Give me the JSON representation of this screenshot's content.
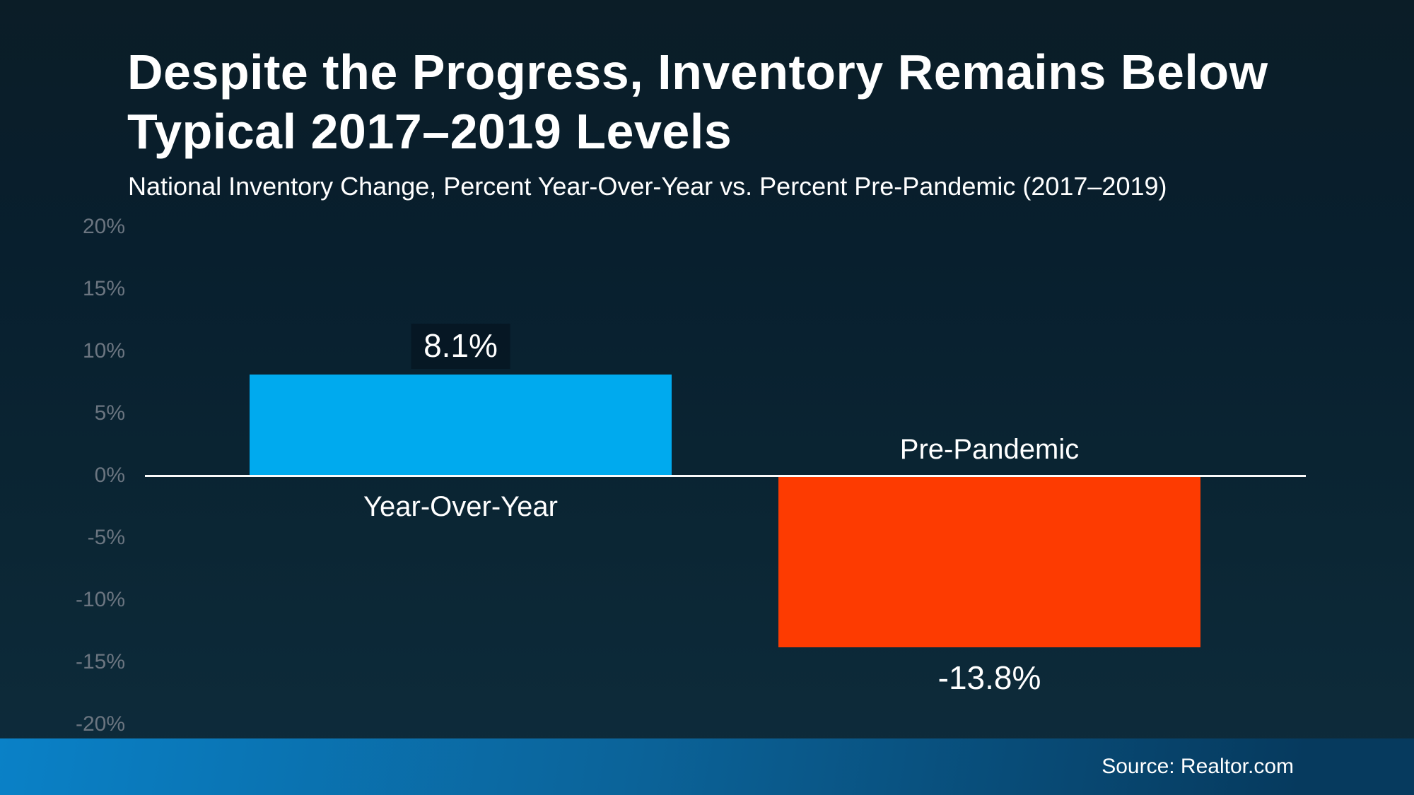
{
  "slide": {
    "title_lines": [
      "Despite the Progress, Inventory Remains Below",
      "Typical 2017–2019 Levels"
    ],
    "subtitle": "National Inventory Change, Percent Year-Over-Year vs. Percent Pre-Pandemic (2017–2019)",
    "footer": {
      "source": "Source: Realtor.com"
    }
  },
  "colors": {
    "background_top": "#0b1d27",
    "background_bottom": "#0e2c3c",
    "positive_bar": "#00aaee",
    "negative_bar": "#fd3b01",
    "axis_label": "#6b7580",
    "baseline": "#fafafa",
    "footer_left": "#0a81c7",
    "footer_right": "#063a5e",
    "text": "#ffffff"
  },
  "chart_data": {
    "type": "bar",
    "title": "Despite the Progress, Inventory Remains Below Typical 2017–2019 Levels",
    "subtitle": "National Inventory Change, Percent Year-Over-Year vs. Percent Pre-Pandemic (2017–2019)",
    "categories": [
      "Year-Over-Year",
      "Pre-Pandemic"
    ],
    "values": [
      8.1,
      -13.8
    ],
    "value_labels": [
      "8.1%",
      "-13.8%"
    ],
    "bar_colors": [
      "#00aaee",
      "#fd3b01"
    ],
    "ylim": [
      -20,
      20
    ],
    "ytick_step": 5,
    "ytick_labels": [
      "20%",
      "15%",
      "10%",
      "5%",
      "0%",
      "-5%",
      "-10%",
      "-15%",
      "-20%"
    ],
    "grid": false,
    "legend": false,
    "baseline_at": 0,
    "source": "Source: Realtor.com"
  }
}
